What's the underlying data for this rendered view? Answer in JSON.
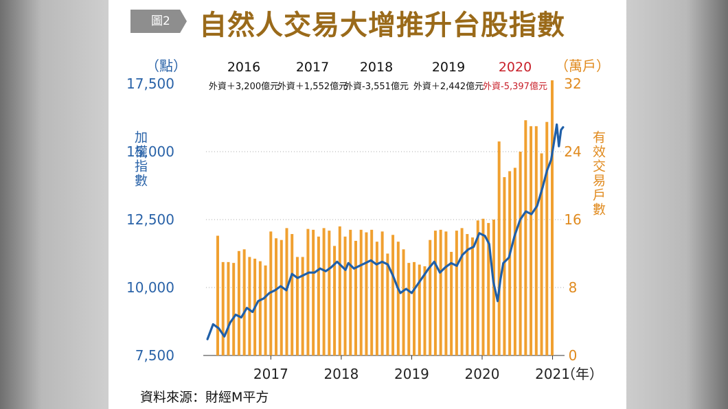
{
  "badge": "圖2",
  "title": "自然人交易大增推升台股指數",
  "source": "資料來源：財經M平方",
  "colors": {
    "index_line": "#1f5fa8",
    "bars": "#f0a030",
    "highlight_red": "#c8202a",
    "left_axis": "#2a63a8",
    "right_axis": "#e08a1e"
  },
  "chart_data": {
    "type": "bar+line",
    "left_axis": {
      "label": "加權指數",
      "unit": "（點）",
      "ticks": [
        "17,500",
        "15,000",
        "12,500",
        "10,000",
        "7,500"
      ],
      "ylim": [
        7500,
        17500
      ]
    },
    "right_axis": {
      "label": "有效交易戶數",
      "unit": "（萬戶）",
      "ticks": [
        "32",
        "24",
        "16",
        "8",
        "0"
      ],
      "ylim": [
        0,
        32
      ]
    },
    "x_axis": {
      "ticks": [
        "2017",
        "2018",
        "2019",
        "2020",
        "2021"
      ],
      "unit": "（年）",
      "range": [
        2016.08,
        2021.17
      ]
    },
    "annotations": [
      {
        "year": "2016",
        "text": "外資＋3,200億元",
        "highlight": false
      },
      {
        "year": "2017",
        "text": "外資＋1,552億元",
        "highlight": false
      },
      {
        "year": "2018",
        "text": "外資-3,551億元",
        "highlight": false
      },
      {
        "year": "2019",
        "text": "外資＋2,442億元",
        "highlight": false
      },
      {
        "year": "2020",
        "text": "外資-5,397億元",
        "highlight": true
      }
    ],
    "bars": {
      "name": "有效交易戶數",
      "values": [
        14.1,
        11.0,
        11.0,
        10.9,
        12.3,
        12.5,
        11.6,
        11.4,
        11.1,
        10.6,
        14.6,
        13.8,
        13.6,
        15.0,
        14.3,
        11.6,
        11.6,
        14.9,
        14.8,
        14.0,
        15.0,
        14.7,
        12.9,
        15.2,
        14.0,
        14.8,
        13.5,
        14.8,
        14.5,
        14.8,
        13.4,
        14.6,
        12.0,
        14.2,
        13.4,
        12.5,
        10.9,
        11.0,
        10.7,
        10.5,
        13.6,
        14.7,
        14.8,
        14.6,
        12.2,
        14.7,
        15.0,
        14.3,
        13.9,
        15.9,
        16.1,
        15.6,
        16.0,
        25.2,
        21.0,
        21.7,
        22.1,
        24.0,
        27.7,
        27.0,
        27.0,
        23.8,
        27.5,
        32.4
      ]
    },
    "series": [
      {
        "name": "加權指數",
        "x": [
          2016.1,
          2016.18,
          2016.26,
          2016.34,
          2016.42,
          2016.5,
          2016.58,
          2016.66,
          2016.74,
          2016.82,
          2016.9,
          2016.98,
          2017.06,
          2017.14,
          2017.22,
          2017.3,
          2017.38,
          2017.46,
          2017.54,
          2017.62,
          2017.7,
          2017.78,
          2017.86,
          2017.94,
          2018.02,
          2018.06,
          2018.1,
          2018.18,
          2018.26,
          2018.34,
          2018.42,
          2018.5,
          2018.58,
          2018.66,
          2018.74,
          2018.8,
          2018.84,
          2018.92,
          2019.0,
          2019.08,
          2019.16,
          2019.24,
          2019.32,
          2019.4,
          2019.48,
          2019.56,
          2019.64,
          2019.72,
          2019.8,
          2019.88,
          2019.96,
          2020.04,
          2020.1,
          2020.16,
          2020.22,
          2020.26,
          2020.3,
          2020.38,
          2020.46,
          2020.54,
          2020.62,
          2020.7,
          2020.78,
          2020.86,
          2020.92,
          2020.98,
          2021.03,
          2021.06,
          2021.09,
          2021.12,
          2021.15
        ],
        "y": [
          8100,
          8650,
          8500,
          8200,
          8700,
          9000,
          8900,
          9250,
          9100,
          9500,
          9600,
          9800,
          9900,
          10050,
          9900,
          10500,
          10350,
          10450,
          10550,
          10550,
          10700,
          10600,
          10750,
          10950,
          10750,
          10650,
          10900,
          10700,
          10800,
          10900,
          11000,
          10850,
          10950,
          10850,
          10400,
          10000,
          9800,
          9950,
          9800,
          10100,
          10400,
          10700,
          10950,
          10550,
          10750,
          10900,
          10800,
          11200,
          11400,
          11500,
          12000,
          11900,
          11600,
          10200,
          9500,
          10300,
          10900,
          11100,
          11900,
          12500,
          12800,
          12700,
          13000,
          13700,
          14300,
          14700,
          15500,
          16000,
          15200,
          15800,
          15900
        ]
      }
    ]
  }
}
